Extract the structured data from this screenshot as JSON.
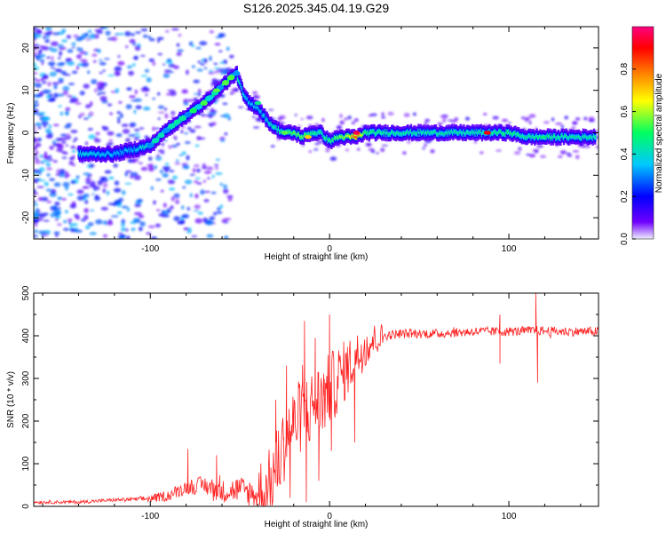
{
  "title": "S126.2025.345.04.19.G29",
  "chart_data": [
    {
      "type": "heatmap",
      "name": "spectrogram",
      "xlabel": "Height of straight line (km)",
      "ylabel": "Frequency (Hz)",
      "xlim": [
        -165,
        150
      ],
      "ylim": [
        -25,
        25
      ],
      "xticks": [
        -100,
        0,
        100
      ],
      "xtick_labels": [
        "-100",
        "0",
        "100"
      ],
      "yticks": [
        -20,
        -10,
        0,
        10,
        20
      ],
      "ytick_labels": [
        "-20",
        "-10",
        "0",
        "10",
        "20"
      ],
      "colorbar": {
        "label": "Normalized spectral amplitude",
        "range": [
          0,
          1
        ],
        "ticks": [
          0,
          0.2,
          0.4,
          0.6,
          0.8
        ],
        "tick_labels": [
          "0.0",
          "0.2",
          "0.4",
          "0.6",
          "0.8"
        ],
        "colors": [
          "#f0f0ff",
          "#7000ff",
          "#0000ff",
          "#00c8ff",
          "#00ff60",
          "#ffff00",
          "#ff8000",
          "#ff0000",
          "#ff0080"
        ]
      },
      "ridge": {
        "x": [
          -140,
          -120,
          -110,
          -100,
          -90,
          -80,
          -70,
          -60,
          -55,
          -52,
          -48,
          -45,
          -40,
          -35,
          -30,
          -25,
          -20,
          -15,
          -10,
          -5,
          0,
          5,
          10,
          15,
          20,
          40,
          60,
          80,
          100,
          110,
          120,
          135,
          148
        ],
        "y": [
          -5,
          -5,
          -4,
          -3,
          1,
          4,
          7,
          11,
          13,
          14,
          9,
          7,
          6,
          3,
          1,
          0,
          0,
          -1,
          0,
          0,
          -2,
          -1,
          -1,
          -1,
          0,
          0,
          0,
          0,
          0,
          -1,
          -1,
          -1,
          -1
        ],
        "amplitude": [
          0.4,
          0.35,
          0.35,
          0.45,
          0.45,
          0.45,
          0.5,
          0.5,
          0.5,
          0.45,
          0.4,
          0.35,
          0.35,
          0.4,
          0.45,
          0.5,
          0.55,
          0.55,
          0.5,
          0.45,
          0.5,
          0.55,
          0.6,
          0.85,
          0.5,
          0.45,
          0.45,
          0.45,
          0.5,
          0.45,
          0.5,
          0.45,
          0.45
        ]
      },
      "hotspots": [
        {
          "x": -40,
          "y": 7,
          "amplitude": 0.45
        },
        {
          "x": -25,
          "y": 0,
          "amplitude": 0.55
        },
        {
          "x": -12,
          "y": -1,
          "amplitude": 0.7
        },
        {
          "x": 15,
          "y": 0,
          "amplitude": 0.95
        },
        {
          "x": 88,
          "y": 0,
          "amplitude": 0.9
        },
        {
          "x": -63,
          "y": 10,
          "amplitude": 0.55
        }
      ]
    },
    {
      "type": "line",
      "name": "snr",
      "xlabel": "Height of straight line (km)",
      "ylabel": "SNR (10 * v/v)",
      "xlim": [
        -165,
        150
      ],
      "ylim": [
        0,
        500
      ],
      "xticks": [
        -100,
        0,
        100
      ],
      "xtick_labels": [
        "-100",
        "0",
        "100"
      ],
      "yticks": [
        0,
        100,
        200,
        300,
        400,
        500
      ],
      "ytick_labels": [
        "0",
        "100",
        "200",
        "300",
        "400",
        "500"
      ],
      "line_color": "#ff2020",
      "baseline": {
        "x": [
          -165,
          -140,
          -120,
          -100,
          -90,
          -80,
          -70,
          -60,
          -50,
          -40,
          -35,
          -30,
          -25,
          -20,
          -15,
          -10,
          -5,
          0,
          5,
          10,
          15,
          20,
          25,
          30,
          40,
          60,
          80,
          100,
          115,
          130,
          150
        ],
        "y": [
          10,
          10,
          15,
          18,
          25,
          45,
          50,
          35,
          40,
          25,
          30,
          90,
          150,
          190,
          220,
          230,
          250,
          270,
          300,
          325,
          350,
          375,
          390,
          400,
          405,
          405,
          410,
          410,
          412,
          410,
          410
        ]
      },
      "spikes": [
        {
          "x": -79,
          "y": 135
        },
        {
          "x": -63,
          "y": 120
        },
        {
          "x": -34,
          "y": 100
        },
        {
          "x": -30,
          "y": 250
        },
        {
          "x": -24,
          "y": 330
        },
        {
          "x": -22,
          "y": 20
        },
        {
          "x": -14,
          "y": 435
        },
        {
          "x": -13,
          "y": 10
        },
        {
          "x": -8,
          "y": 395
        },
        {
          "x": -6,
          "y": 60
        },
        {
          "x": -3,
          "y": 260
        },
        {
          "x": 0,
          "y": 450
        },
        {
          "x": 1,
          "y": 130
        },
        {
          "x": 10,
          "y": 370
        },
        {
          "x": 14,
          "y": 150
        },
        {
          "x": 95,
          "y": 450
        },
        {
          "x": 95,
          "y": 335
        },
        {
          "x": 115,
          "y": 500
        },
        {
          "x": 116,
          "y": 290
        }
      ]
    }
  ]
}
